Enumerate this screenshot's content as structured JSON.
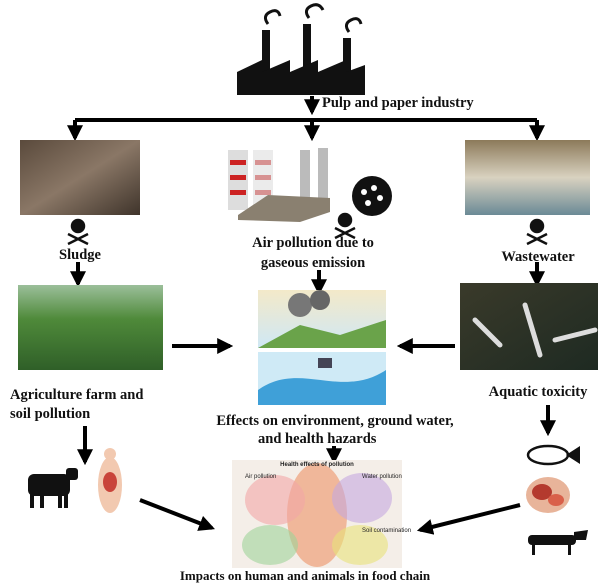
{
  "header": {
    "title": "Pulp and paper industry"
  },
  "nodes": [
    {
      "label": [
        "Sludge"
      ]
    },
    {
      "label": [
        "Air pollution due to",
        "gaseous emission"
      ]
    },
    {
      "label": [
        "Wastewater"
      ]
    },
    {
      "label": [
        "Agriculture farm and",
        "soil pollution"
      ]
    },
    {
      "label": [
        "Effects on environment,  ground water,",
        "and health hazards"
      ]
    },
    {
      "label": [
        "Aquatic toxicity"
      ]
    },
    {
      "label": [
        "Impacts on human and animals in food chain"
      ]
    }
  ],
  "health_panel": {
    "title": "Health effects of pollution",
    "labels": [
      "Air pollution",
      "Water pollution",
      "Soil contamination"
    ]
  }
}
